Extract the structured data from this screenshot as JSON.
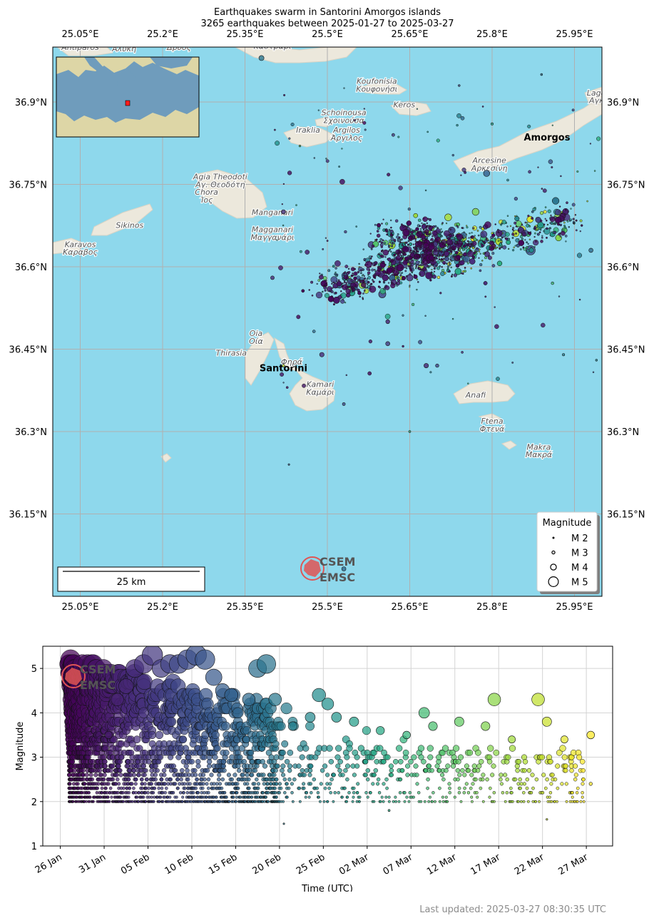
{
  "map": {
    "title": "Earthquakes swarm in Santorini Amorgos islands",
    "subtitle": "3265 earthquakes between 2025-01-27 to 2025-03-27",
    "lon_ticks": [
      "25.05°E",
      "25.2°E",
      "25.35°E",
      "25.5°E",
      "25.65°E",
      "25.8°E",
      "25.95°E"
    ],
    "lon_values": [
      25.05,
      25.2,
      25.35,
      25.5,
      25.65,
      25.8,
      25.95
    ],
    "lat_ticks": [
      "36.9°N",
      "36.75°N",
      "36.6°N",
      "36.45°N",
      "36.3°N",
      "36.15°N"
    ],
    "lat_values": [
      36.9,
      36.75,
      36.6,
      36.45,
      36.3,
      36.15
    ],
    "lon_range": [
      25.0,
      26.0
    ],
    "lat_range": [
      36.0,
      37.0
    ],
    "place_labels": [
      {
        "name": "Santorini",
        "lon": 25.42,
        "lat": 36.41,
        "bold": true
      },
      {
        "name": "Amorgos",
        "lon": 25.9,
        "lat": 36.83,
        "bold": true
      },
      {
        "name": "Antiparos",
        "lon": 25.05,
        "lat": 36.995,
        "bold": false
      },
      {
        "name": "Αλυκή",
        "lon": 25.13,
        "lat": 36.992,
        "bold": false
      },
      {
        "name": "Δρυός",
        "lon": 25.23,
        "lat": 36.995,
        "bold": false
      },
      {
        "name": "Καστράρι",
        "lon": 25.4,
        "lat": 36.997,
        "bold": false
      },
      {
        "name": "Koufonisia",
        "lon": 25.59,
        "lat": 36.933,
        "bold": false
      },
      {
        "name": "Κουφονήσι",
        "lon": 25.59,
        "lat": 36.919,
        "bold": false
      },
      {
        "name": "Keros",
        "lon": 25.64,
        "lat": 36.89,
        "bold": false
      },
      {
        "name": "Schoinousa",
        "lon": 25.53,
        "lat": 36.876,
        "bold": false
      },
      {
        "name": "Σχοινούσα",
        "lon": 25.53,
        "lat": 36.862,
        "bold": false
      },
      {
        "name": "Iraklia",
        "lon": 25.465,
        "lat": 36.844,
        "bold": false
      },
      {
        "name": "Argilos",
        "lon": 25.535,
        "lat": 36.844,
        "bold": false
      },
      {
        "name": "Άργιλος",
        "lon": 25.535,
        "lat": 36.83,
        "bold": false
      },
      {
        "name": "Arcesine",
        "lon": 25.795,
        "lat": 36.789,
        "bold": false
      },
      {
        "name": "Αρκεσίνη",
        "lon": 25.795,
        "lat": 36.775,
        "bold": false
      },
      {
        "name": "Agia Theodoti",
        "lon": 25.305,
        "lat": 36.759,
        "bold": false
      },
      {
        "name": "Αγ. Θεοδότη",
        "lon": 25.305,
        "lat": 36.745,
        "bold": false
      },
      {
        "name": "Chora",
        "lon": 25.28,
        "lat": 36.731,
        "bold": false
      },
      {
        "name": "Ίος",
        "lon": 25.28,
        "lat": 36.717,
        "bold": false
      },
      {
        "name": "Manganari",
        "lon": 25.4,
        "lat": 36.694,
        "bold": false
      },
      {
        "name": "Magganari",
        "lon": 25.4,
        "lat": 36.663,
        "bold": false
      },
      {
        "name": "Μαγγανάρι",
        "lon": 25.4,
        "lat": 36.649,
        "bold": false
      },
      {
        "name": "Sikinos",
        "lon": 25.14,
        "lat": 36.671,
        "bold": false
      },
      {
        "name": "Karavos",
        "lon": 25.05,
        "lat": 36.636,
        "bold": false
      },
      {
        "name": "Καραβος",
        "lon": 25.05,
        "lat": 36.622,
        "bold": false
      },
      {
        "name": "Oia",
        "lon": 25.37,
        "lat": 36.474,
        "bold": false
      },
      {
        "name": "Οία",
        "lon": 25.37,
        "lat": 36.46,
        "bold": false
      },
      {
        "name": "Thirasia",
        "lon": 25.325,
        "lat": 36.438,
        "bold": false
      },
      {
        "name": "Φηρά",
        "lon": 25.435,
        "lat": 36.422,
        "bold": false
      },
      {
        "name": "Kamari",
        "lon": 25.487,
        "lat": 36.381,
        "bold": false
      },
      {
        "name": "Καμάρι",
        "lon": 25.487,
        "lat": 36.367,
        "bold": false
      },
      {
        "name": "Anafi",
        "lon": 25.77,
        "lat": 36.362,
        "bold": false
      },
      {
        "name": "Ftena",
        "lon": 25.8,
        "lat": 36.314,
        "bold": false
      },
      {
        "name": "Φτενά",
        "lon": 25.8,
        "lat": 36.3,
        "bold": false
      },
      {
        "name": "Makra",
        "lon": 25.885,
        "lat": 36.267,
        "bold": false
      },
      {
        "name": "Μακρά",
        "lon": 25.885,
        "lat": 36.253,
        "bold": false
      },
      {
        "name": "Lagα",
        "lon": 25.99,
        "lat": 36.912,
        "bold": false
      },
      {
        "name": "Αγκ",
        "lon": 25.99,
        "lat": 36.898,
        "bold": false
      }
    ],
    "legend": {
      "title": "Magnitude",
      "items": [
        "M 2",
        "M 3",
        "M 4",
        "M 5"
      ],
      "magnitudes": [
        2,
        3,
        4,
        5
      ]
    },
    "scalebar_label": "25 km",
    "logo_text_top": "CSEM",
    "logo_text_bottom": "EMSC"
  },
  "timeline": {
    "ylabel": "Magnitude",
    "xlabel": "Time (UTC)",
    "yticks": [
      "1",
      "2",
      "3",
      "4",
      "5"
    ],
    "ytick_values": [
      1,
      2,
      3,
      4,
      5
    ],
    "xticks": [
      "26 Jan",
      "31 Jan",
      "05 Feb",
      "10 Feb",
      "15 Feb",
      "20 Feb",
      "25 Feb",
      "02 Mar",
      "07 Mar",
      "12 Mar",
      "17 Mar",
      "22 Mar",
      "27 Mar"
    ],
    "xtick_dates": [
      "2025-01-26",
      "2025-01-31",
      "2025-02-05",
      "2025-02-10",
      "2025-02-15",
      "2025-02-20",
      "2025-02-25",
      "2025-03-02",
      "2025-03-07",
      "2025-03-12",
      "2025-03-17",
      "2025-03-22",
      "2025-03-27"
    ],
    "x_range": [
      "2025-01-24",
      "2025-03-30"
    ],
    "y_range": [
      1,
      5.5
    ]
  },
  "chart_data": [
    {
      "type": "scatter",
      "title": "Earthquakes swarm in Santorini Amorgos islands",
      "subtitle": "3265 earthquakes between 2025-01-27 to 2025-03-27",
      "xlabel": "",
      "ylabel": "",
      "xlim": [
        25.0,
        26.0
      ],
      "ylim": [
        36.0,
        37.0
      ],
      "grid": true,
      "legend_position": "bottom-right",
      "colormap": "viridis by event time",
      "series": [
        {
          "name": "Magnitude",
          "points": [
            {
              "lon": 25.38,
              "lat": 36.98,
              "mag": 3.8,
              "date": "2025-02-19"
            },
            {
              "lon": 25.79,
              "lat": 36.77,
              "mag": 4.1,
              "date": "2025-02-14"
            },
            {
              "lon": 25.87,
              "lat": 36.63,
              "mag": 4.9,
              "date": "2025-02-10"
            },
            {
              "lon": 25.66,
              "lat": 36.62,
              "mag": 4.0,
              "date": "2025-02-08"
            },
            {
              "lon": 25.72,
              "lat": 36.69,
              "mag": 4.3,
              "date": "2025-03-20"
            },
            {
              "lon": 25.77,
              "lat": 36.7,
              "mag": 4.3,
              "date": "2025-03-16"
            },
            {
              "lon": 25.65,
              "lat": 36.58,
              "mag": 4.2,
              "date": "2025-02-04"
            },
            {
              "lon": 25.58,
              "lat": 36.64,
              "mag": 4.2,
              "date": "2025-02-05"
            },
            {
              "lon": 25.6,
              "lat": 36.55,
              "mag": 4.4,
              "date": "2025-02-07"
            },
            {
              "lon": 25.7,
              "lat": 36.66,
              "mag": 4.4,
              "date": "2025-02-11"
            },
            {
              "lon": 25.82,
              "lat": 36.66,
              "mag": 4.3,
              "date": "2025-02-12"
            },
            {
              "lon": 25.53,
              "lat": 36.05,
              "mag": 3.5,
              "date": "2025-02-16"
            },
            {
              "lon": 25.49,
              "lat": 36.44,
              "mag": 3.6,
              "date": "2025-02-03"
            },
            {
              "lon": 25.68,
              "lat": 36.42,
              "mag": 3.6,
              "date": "2025-02-02"
            },
            {
              "lon": 25.61,
              "lat": 36.46,
              "mag": 3.5,
              "date": "2025-02-06"
            },
            {
              "lon": 25.61,
              "lat": 36.5,
              "mag": 3.4,
              "date": "2025-02-01"
            },
            {
              "lon": 25.98,
              "lat": 36.63,
              "mag": 3.5,
              "date": "2025-02-17"
            },
            {
              "lon": 25.42,
              "lat": 36.7,
              "mag": 3.5,
              "date": "2025-02-04"
            },
            {
              "lon": 25.4,
              "lat": 36.58,
              "mag": 3.3,
              "date": "2025-02-03"
            },
            {
              "lon": 25.53,
              "lat": 36.35,
              "mag": 3.0,
              "date": "2025-02-09"
            },
            {
              "lon": 25.65,
              "lat": 36.3,
              "mag": 2.6,
              "date": "2025-03-05"
            },
            {
              "lon": 25.43,
              "lat": 36.24,
              "mag": 2.3,
              "date": "2025-02-13"
            },
            {
              "lon": 25.42,
              "lat": 36.42,
              "mag": 2.8,
              "date": "2025-03-22"
            },
            {
              "lon": 25.8,
              "lat": 36.86,
              "mag": 2.7,
              "date": "2025-03-02"
            },
            {
              "lon": 25.89,
              "lat": 36.95,
              "mag": 2.5,
              "date": "2025-02-18"
            },
            {
              "lon": 25.74,
              "lat": 36.93,
              "mag": 2.5,
              "date": "2025-02-09"
            },
            {
              "lon": 25.62,
              "lat": 36.84,
              "mag": 3.0,
              "date": "2025-02-06"
            },
            {
              "lon": 25.45,
              "lat": 36.82,
              "mag": 2.4,
              "date": "2025-03-12"
            },
            {
              "lon": 25.91,
              "lat": 36.57,
              "mag": 2.9,
              "date": "2025-03-08"
            },
            {
              "lon": 25.93,
              "lat": 36.44,
              "mag": 2.7,
              "date": "2025-02-21"
            },
            {
              "lon": 25.99,
              "lat": 36.43,
              "mag": 2.5,
              "date": "2025-02-22"
            },
            {
              "lon": 25.7,
              "lat": 36.42,
              "mag": 3.2,
              "date": "2025-02-08"
            }
          ]
        }
      ]
    },
    {
      "type": "scatter",
      "title": "",
      "xlabel": "Time (UTC)",
      "ylabel": "Magnitude",
      "xlim": [
        "2025-01-24",
        "2025-03-30"
      ],
      "ylim": [
        1,
        5.5
      ],
      "grid": true,
      "colormap": "viridis by event time",
      "series": [
        {
          "name": "",
          "points": [
            {
              "date": "2025-01-31",
              "mag": 3.5
            },
            {
              "date": "2025-02-01",
              "mag": 4.3
            },
            {
              "date": "2025-02-02",
              "mag": 4.6
            },
            {
              "date": "2025-02-03",
              "mag": 5.0
            },
            {
              "date": "2025-02-04",
              "mag": 5.1
            },
            {
              "date": "2025-02-05",
              "mag": 5.3
            },
            {
              "date": "2025-02-06",
              "mag": 5.0
            },
            {
              "date": "2025-02-07",
              "mag": 5.1
            },
            {
              "date": "2025-02-08",
              "mag": 5.1
            },
            {
              "date": "2025-02-09",
              "mag": 5.2
            },
            {
              "date": "2025-02-10",
              "mag": 5.3
            },
            {
              "date": "2025-02-11",
              "mag": 5.2
            },
            {
              "date": "2025-02-12",
              "mag": 4.8
            },
            {
              "date": "2025-02-13",
              "mag": 4.5
            },
            {
              "date": "2025-02-14",
              "mag": 4.4
            },
            {
              "date": "2025-02-16",
              "mag": 4.3
            },
            {
              "date": "2025-02-17",
              "mag": 5.0
            },
            {
              "date": "2025-02-18",
              "mag": 5.1
            },
            {
              "date": "2025-02-19",
              "mag": 4.3
            },
            {
              "date": "2025-02-21",
              "mag": 3.7
            },
            {
              "date": "2025-02-23",
              "mag": 3.9
            },
            {
              "date": "2025-02-24",
              "mag": 4.4
            },
            {
              "date": "2025-02-25",
              "mag": 4.2
            },
            {
              "date": "2025-02-26",
              "mag": 3.9
            },
            {
              "date": "2025-02-28",
              "mag": 3.8
            },
            {
              "date": "2025-03-03",
              "mag": 3.6
            },
            {
              "date": "2025-03-06",
              "mag": 3.5
            },
            {
              "date": "2025-03-08",
              "mag": 4.0
            },
            {
              "date": "2025-03-09",
              "mag": 3.7
            },
            {
              "date": "2025-03-12",
              "mag": 3.8
            },
            {
              "date": "2025-03-15",
              "mag": 3.7
            },
            {
              "date": "2025-03-16",
              "mag": 4.3
            },
            {
              "date": "2025-03-18",
              "mag": 3.4
            },
            {
              "date": "2025-03-21",
              "mag": 4.3
            },
            {
              "date": "2025-03-22",
              "mag": 3.8
            },
            {
              "date": "2025-03-24",
              "mag": 3.4
            },
            {
              "date": "2025-03-27",
              "mag": 3.5
            },
            {
              "date": "2025-03-27",
              "mag": 2.4
            },
            {
              "date": "2025-03-22",
              "mag": 1.6
            },
            {
              "date": "2025-02-20",
              "mag": 1.5
            },
            {
              "date": "2025-03-04",
              "mag": 1.8
            }
          ]
        }
      ]
    }
  ],
  "footer": "Last updated: 2025-03-27 08:30:35 UTC",
  "colors": {
    "sea": "#8ed8ec",
    "land": "#ece8dc",
    "grid": "#b0b0b0",
    "logo": "#e05555",
    "logo_text": "#555555"
  }
}
